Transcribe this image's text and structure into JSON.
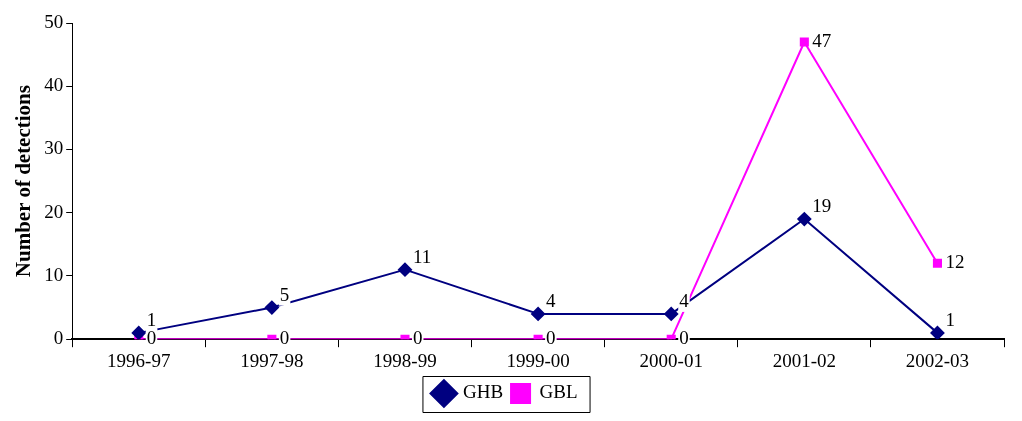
{
  "chart_data": {
    "type": "line",
    "ylabel": "Number of detections",
    "categories": [
      "1996-97",
      "1997-98",
      "1998-99",
      "1999-00",
      "2000-01",
      "2001-02",
      "2002-03"
    ],
    "series": [
      {
        "name": "GHB",
        "color": "#000080",
        "marker": "diamond",
        "values": [
          1,
          5,
          11,
          4,
          4,
          19,
          1
        ]
      },
      {
        "name": "GBL",
        "color": "#ff00ff",
        "marker": "square",
        "values": [
          0,
          0,
          0,
          0,
          0,
          47,
          12
        ]
      }
    ],
    "ylim": [
      0,
      50
    ],
    "yticks": [
      0,
      10,
      20,
      30,
      40,
      50
    ],
    "legend": "bottom",
    "data_labels": true,
    "line_style": "solid"
  }
}
